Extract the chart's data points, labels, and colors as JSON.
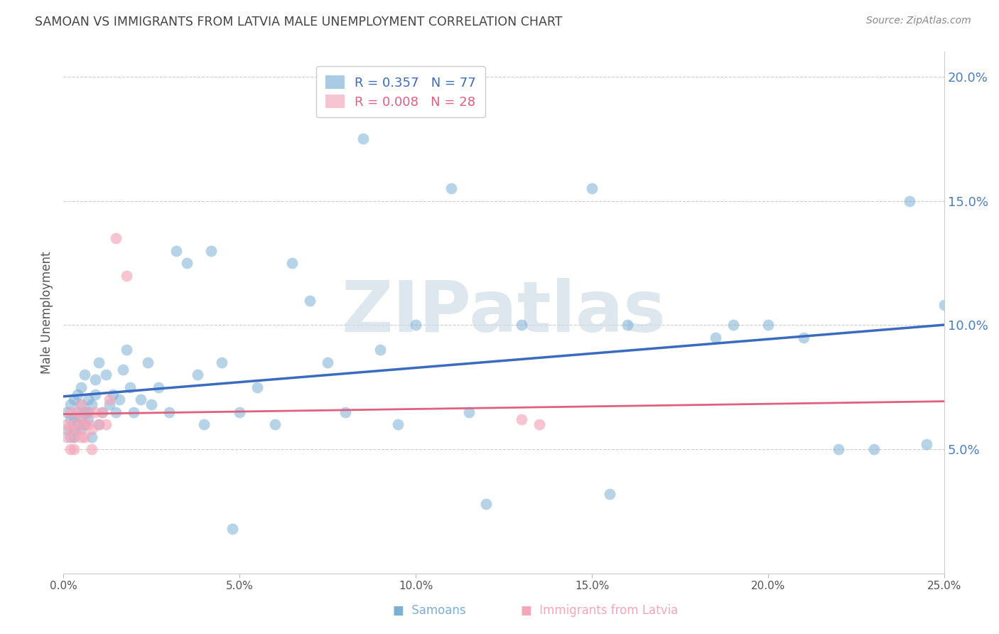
{
  "title": "SAMOAN VS IMMIGRANTS FROM LATVIA MALE UNEMPLOYMENT CORRELATION CHART",
  "source": "Source: ZipAtlas.com",
  "ylabel": "Male Unemployment",
  "xlim": [
    0.0,
    0.25
  ],
  "ylim": [
    0.0,
    0.21
  ],
  "xticks": [
    0.0,
    0.05,
    0.1,
    0.15,
    0.2,
    0.25
  ],
  "yticks_right": [
    0.05,
    0.1,
    0.15,
    0.2
  ],
  "samoan_color": "#7bafd4",
  "latvia_color": "#f4a7b9",
  "line_blue": "#3a6bbf",
  "line_pink": "#e06080",
  "background_color": "#ffffff",
  "grid_color": "#cccccc",
  "title_color": "#444444",
  "right_axis_color": "#4a7fc1",
  "watermark": "ZIPatlas",
  "legend_R1": "R = 0.357",
  "legend_N1": "N = 77",
  "legend_R2": "R = 0.008",
  "legend_N2": "N = 28",
  "samoan_x": [
    0.001,
    0.001,
    0.002,
    0.002,
    0.002,
    0.003,
    0.003,
    0.003,
    0.003,
    0.004,
    0.004,
    0.004,
    0.005,
    0.005,
    0.005,
    0.005,
    0.006,
    0.006,
    0.006,
    0.007,
    0.007,
    0.007,
    0.008,
    0.008,
    0.009,
    0.009,
    0.01,
    0.01,
    0.011,
    0.012,
    0.013,
    0.014,
    0.015,
    0.016,
    0.017,
    0.018,
    0.019,
    0.02,
    0.022,
    0.024,
    0.025,
    0.027,
    0.03,
    0.032,
    0.035,
    0.038,
    0.04,
    0.042,
    0.045,
    0.048,
    0.05,
    0.055,
    0.06,
    0.065,
    0.07,
    0.075,
    0.08,
    0.085,
    0.09,
    0.095,
    0.1,
    0.11,
    0.115,
    0.12,
    0.13,
    0.15,
    0.155,
    0.16,
    0.185,
    0.19,
    0.2,
    0.21,
    0.22,
    0.23,
    0.24,
    0.245,
    0.25
  ],
  "samoan_y": [
    0.065,
    0.058,
    0.062,
    0.068,
    0.055,
    0.07,
    0.063,
    0.058,
    0.055,
    0.065,
    0.06,
    0.072,
    0.068,
    0.062,
    0.058,
    0.075,
    0.065,
    0.06,
    0.08,
    0.065,
    0.062,
    0.07,
    0.068,
    0.055,
    0.072,
    0.078,
    0.06,
    0.085,
    0.065,
    0.08,
    0.068,
    0.072,
    0.065,
    0.07,
    0.082,
    0.09,
    0.075,
    0.065,
    0.07,
    0.085,
    0.068,
    0.075,
    0.065,
    0.13,
    0.125,
    0.08,
    0.06,
    0.13,
    0.085,
    0.018,
    0.065,
    0.075,
    0.06,
    0.125,
    0.11,
    0.085,
    0.065,
    0.175,
    0.09,
    0.06,
    0.1,
    0.155,
    0.065,
    0.028,
    0.1,
    0.155,
    0.032,
    0.1,
    0.095,
    0.1,
    0.1,
    0.095,
    0.05,
    0.05,
    0.15,
    0.052,
    0.108
  ],
  "latvia_x": [
    0.001,
    0.001,
    0.002,
    0.002,
    0.002,
    0.003,
    0.003,
    0.003,
    0.004,
    0.004,
    0.005,
    0.005,
    0.005,
    0.006,
    0.006,
    0.007,
    0.007,
    0.008,
    0.008,
    0.009,
    0.01,
    0.011,
    0.012,
    0.013,
    0.015,
    0.018,
    0.13,
    0.135
  ],
  "latvia_y": [
    0.06,
    0.055,
    0.065,
    0.058,
    0.05,
    0.06,
    0.055,
    0.05,
    0.065,
    0.058,
    0.068,
    0.062,
    0.055,
    0.06,
    0.055,
    0.065,
    0.06,
    0.058,
    0.05,
    0.065,
    0.06,
    0.065,
    0.06,
    0.07,
    0.135,
    0.12,
    0.062,
    0.06
  ]
}
